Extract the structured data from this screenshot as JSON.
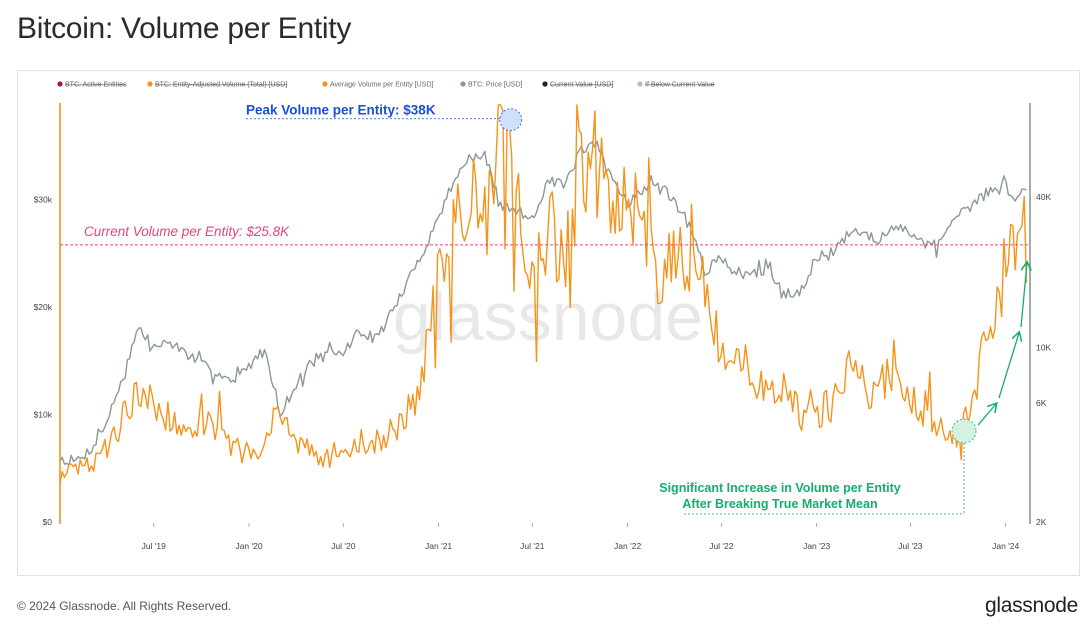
{
  "page": {
    "title": "Bitcoin: Volume per Entity",
    "copyright": "© 2024 Glassnode. All Rights Reserved.",
    "brand": "glassnode",
    "watermark": "glassnode"
  },
  "colors": {
    "volume": "#f7931a",
    "price": "#8a9896",
    "current_line": "#e8457a",
    "peak_annotation": "#1a4fd8",
    "increase_annotation": "#11b06b",
    "axis_left": "#f7931a",
    "axis_right": "#8a9896"
  },
  "chart_data": {
    "type": "line",
    "title": "Bitcoin: Volume per Entity",
    "legend": [
      {
        "label": "BTC: Active Entities",
        "color": "#a0174b",
        "struck": true
      },
      {
        "label": "BTC: Entity-Adjusted Volume (Total) [USD]",
        "color": "#f7931a",
        "struck": true
      },
      {
        "label": "Average Volume per Entity [USD]",
        "color": "#f7931a",
        "struck": false
      },
      {
        "label": "BTC: Price [USD]",
        "color": "#8a9896",
        "struck": false
      },
      {
        "label": "Current Value [USD]",
        "color": "#222222",
        "struck": true
      },
      {
        "label": "If Below Current Value",
        "color": "#b9b2d8",
        "struck": true
      }
    ],
    "legend_position": "top-left",
    "x_ticks": [
      "Jul '19",
      "Jan '20",
      "Jul '20",
      "Jan '21",
      "Jul '21",
      "Jan '22",
      "Jul '22",
      "Jan '23",
      "Jul '23",
      "Jan '24"
    ],
    "y_left": {
      "ticks": [
        "$0",
        "$10k",
        "$20k",
        "$30k"
      ],
      "range": [
        0,
        39000
      ],
      "scale": "linear"
    },
    "y_right": {
      "ticks": [
        "2K",
        "6K",
        "10K",
        "40K"
      ],
      "range": [
        2000,
        95000
      ],
      "scale": "log"
    },
    "x_range": [
      "2019-01-01",
      "2024-02-15"
    ],
    "series": [
      {
        "name": "Average Volume per Entity [USD]",
        "axis": "left",
        "points": [
          [
            "2019-01-01",
            4500
          ],
          [
            "2019-02-01",
            5000
          ],
          [
            "2019-03-01",
            5300
          ],
          [
            "2019-04-01",
            6800
          ],
          [
            "2019-05-01",
            9500
          ],
          [
            "2019-06-01",
            12500
          ],
          [
            "2019-07-01",
            11000
          ],
          [
            "2019-08-01",
            9500
          ],
          [
            "2019-09-01",
            8500
          ],
          [
            "2019-10-01",
            8800
          ],
          [
            "2019-11-01",
            9000
          ],
          [
            "2019-12-01",
            7000
          ],
          [
            "2020-01-01",
            6000
          ],
          [
            "2020-02-01",
            7500
          ],
          [
            "2020-03-01",
            11000
          ],
          [
            "2020-04-01",
            7000
          ],
          [
            "2020-05-01",
            6500
          ],
          [
            "2020-06-01",
            5500
          ],
          [
            "2020-07-01",
            6000
          ],
          [
            "2020-08-01",
            7500
          ],
          [
            "2020-09-01",
            7000
          ],
          [
            "2020-10-01",
            7200
          ],
          [
            "2020-11-01",
            10000
          ],
          [
            "2020-12-01",
            13000
          ],
          [
            "2021-01-01",
            24000
          ],
          [
            "2021-02-01",
            28000
          ],
          [
            "2021-03-01",
            30000
          ],
          [
            "2021-04-01",
            27000
          ],
          [
            "2021-05-01",
            38000
          ],
          [
            "2021-06-01",
            30000
          ],
          [
            "2021-07-01",
            22000
          ],
          [
            "2021-08-01",
            27000
          ],
          [
            "2021-09-01",
            25000
          ],
          [
            "2021-10-01",
            32000
          ],
          [
            "2021-11-01",
            34000
          ],
          [
            "2021-12-01",
            28000
          ],
          [
            "2022-01-01",
            29000
          ],
          [
            "2022-02-01",
            27000
          ],
          [
            "2022-03-01",
            22000
          ],
          [
            "2022-04-01",
            24000
          ],
          [
            "2022-05-01",
            25000
          ],
          [
            "2022-06-01",
            21000
          ],
          [
            "2022-07-01",
            15000
          ],
          [
            "2022-08-01",
            15000
          ],
          [
            "2022-09-01",
            14000
          ],
          [
            "2022-10-01",
            11000
          ],
          [
            "2022-11-01",
            13000
          ],
          [
            "2022-12-01",
            9500
          ],
          [
            "2023-01-01",
            10000
          ],
          [
            "2023-02-01",
            11000
          ],
          [
            "2023-03-01",
            13500
          ],
          [
            "2023-04-01",
            12000
          ],
          [
            "2023-05-01",
            12000
          ],
          [
            "2023-06-01",
            15000
          ],
          [
            "2023-07-01",
            11500
          ],
          [
            "2023-08-01",
            10500
          ],
          [
            "2023-09-01",
            9000
          ],
          [
            "2023-10-01",
            8000
          ],
          [
            "2023-11-01",
            12000
          ],
          [
            "2023-12-01",
            18000
          ],
          [
            "2024-01-01",
            23000
          ],
          [
            "2024-01-20",
            31500
          ],
          [
            "2024-02-10",
            25800
          ]
        ]
      },
      {
        "name": "BTC: Price [USD]",
        "axis": "right",
        "points": [
          [
            "2019-01-01",
            3600
          ],
          [
            "2019-02-01",
            3500
          ],
          [
            "2019-03-01",
            3900
          ],
          [
            "2019-04-01",
            5000
          ],
          [
            "2019-05-01",
            7500
          ],
          [
            "2019-06-01",
            12000
          ],
          [
            "2019-07-01",
            10000
          ],
          [
            "2019-08-01",
            10500
          ],
          [
            "2019-09-01",
            9500
          ],
          [
            "2019-10-01",
            8500
          ],
          [
            "2019-11-01",
            8000
          ],
          [
            "2019-12-01",
            7200
          ],
          [
            "2020-01-01",
            8500
          ],
          [
            "2020-02-01",
            9800
          ],
          [
            "2020-03-01",
            5500
          ],
          [
            "2020-04-01",
            7000
          ],
          [
            "2020-05-01",
            9000
          ],
          [
            "2020-06-01",
            9300
          ],
          [
            "2020-07-01",
            9500
          ],
          [
            "2020-08-01",
            11700
          ],
          [
            "2020-09-01",
            10800
          ],
          [
            "2020-10-01",
            13500
          ],
          [
            "2020-11-01",
            18000
          ],
          [
            "2020-12-01",
            24000
          ],
          [
            "2021-01-01",
            33000
          ],
          [
            "2021-02-01",
            48000
          ],
          [
            "2021-03-01",
            57000
          ],
          [
            "2021-04-01",
            58000
          ],
          [
            "2021-05-01",
            37000
          ],
          [
            "2021-06-01",
            35000
          ],
          [
            "2021-07-01",
            33000
          ],
          [
            "2021-08-01",
            47000
          ],
          [
            "2021-09-01",
            44000
          ],
          [
            "2021-10-01",
            61000
          ],
          [
            "2021-11-01",
            64000
          ],
          [
            "2021-12-01",
            48000
          ],
          [
            "2022-01-01",
            38000
          ],
          [
            "2022-02-01",
            43000
          ],
          [
            "2022-03-01",
            45000
          ],
          [
            "2022-04-01",
            39000
          ],
          [
            "2022-05-01",
            30000
          ],
          [
            "2022-06-01",
            20000
          ],
          [
            "2022-07-01",
            23000
          ],
          [
            "2022-08-01",
            20000
          ],
          [
            "2022-09-01",
            19500
          ],
          [
            "2022-10-01",
            20500
          ],
          [
            "2022-11-01",
            16500
          ],
          [
            "2022-12-01",
            16800
          ],
          [
            "2023-01-01",
            23000
          ],
          [
            "2023-02-01",
            23500
          ],
          [
            "2023-03-01",
            28000
          ],
          [
            "2023-04-01",
            29000
          ],
          [
            "2023-05-01",
            27000
          ],
          [
            "2023-06-01",
            30000
          ],
          [
            "2023-07-01",
            29200
          ],
          [
            "2023-08-01",
            26000
          ],
          [
            "2023-09-01",
            26500
          ],
          [
            "2023-10-01",
            34000
          ],
          [
            "2023-11-01",
            37500
          ],
          [
            "2023-12-01",
            42500
          ],
          [
            "2024-01-01",
            44000
          ],
          [
            "2024-01-20",
            40000
          ],
          [
            "2024-02-10",
            42500
          ]
        ]
      }
    ],
    "reference_line": {
      "label": "Current Volume per Entity: $25.8K",
      "value": 25800
    },
    "annotations": {
      "peak": {
        "label": "Peak Volume per Entity: $38K",
        "date": "2021-05-01",
        "value": 38000
      },
      "increase": {
        "line1": "Significant Increase in Volume per Entity",
        "line2": "After Breaking True Market Mean",
        "date": "2023-10-01",
        "value": 8000
      }
    }
  }
}
